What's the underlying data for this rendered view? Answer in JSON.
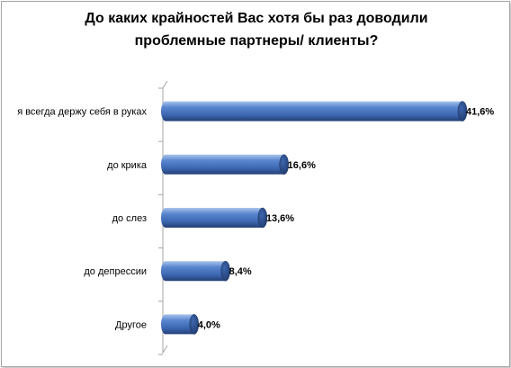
{
  "chart_data": {
    "type": "bar",
    "orientation": "horizontal",
    "title_lines": [
      "До каких крайностей Вас хотя бы раз доводили",
      "проблемные партнеры/ клиенты?"
    ],
    "categories": [
      "я всегда держу себя в руках",
      "до крика",
      "до слез",
      "до депрессии",
      "Другое"
    ],
    "values": [
      41.6,
      16.6,
      13.6,
      8.4,
      4.0
    ],
    "data_labels": [
      "41,6%",
      "16,6%",
      "13,6%",
      "8,4%",
      "4,0%"
    ],
    "xlim": [
      0,
      42
    ],
    "grid": false,
    "legend": "none",
    "bar_color": "#4472c4"
  }
}
